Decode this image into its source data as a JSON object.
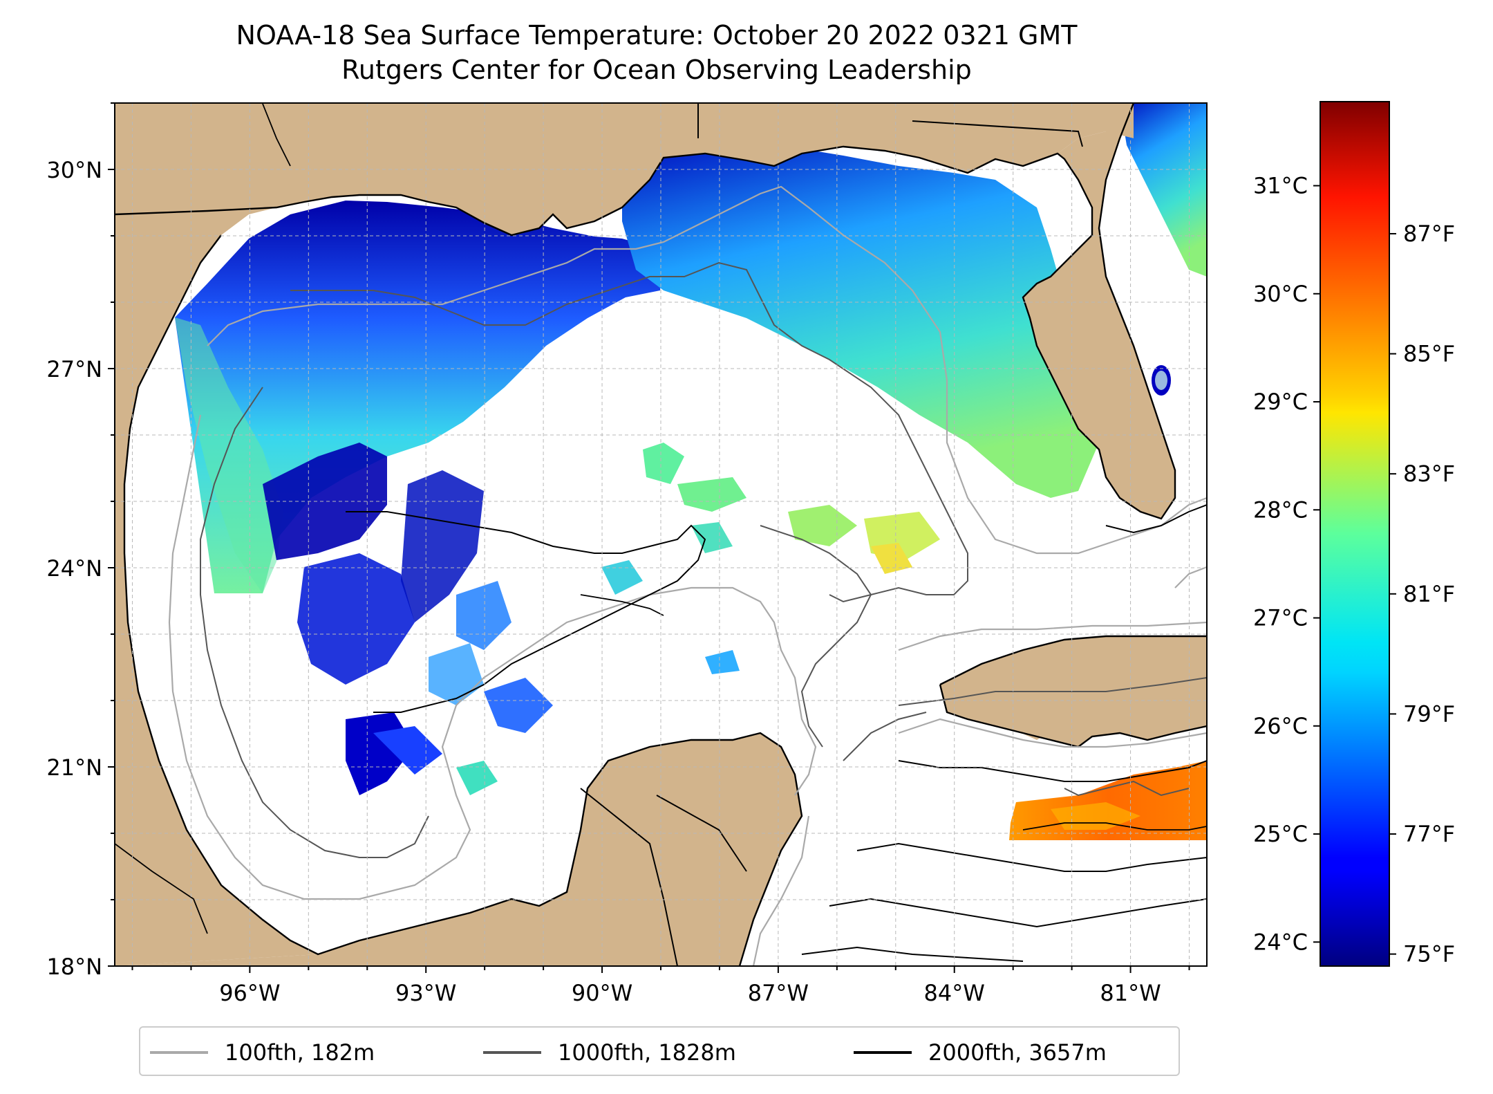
{
  "title": "NOAA-18 Sea Surface Temperature: October 20 2022 0321 GMT",
  "subtitle": "Rutgers Center for Ocean Observing Leadership",
  "map": {
    "lon_range": [
      -98.3,
      -79.7
    ],
    "lat_range": [
      18.0,
      31.0
    ],
    "lat_ticks": [
      {
        "value": 30,
        "label": "30°N"
      },
      {
        "value": 27,
        "label": "27°N"
      },
      {
        "value": 24,
        "label": "24°N"
      },
      {
        "value": 21,
        "label": "21°N"
      },
      {
        "value": 18,
        "label": "18°N"
      }
    ],
    "lon_ticks": [
      {
        "value": -96,
        "label": "96°W"
      },
      {
        "value": -93,
        "label": "93°W"
      },
      {
        "value": -90,
        "label": "90°W"
      },
      {
        "value": -87,
        "label": "87°W"
      },
      {
        "value": -84,
        "label": "84°W"
      },
      {
        "value": -81,
        "label": "81°W"
      }
    ],
    "land_color": "#d2b48c",
    "gridlines": true
  },
  "colorbar": {
    "celsius_ticks": [
      "31°C",
      "30°C",
      "29°C",
      "28°C",
      "27°C",
      "26°C",
      "25°C",
      "24°C"
    ],
    "fahrenheit_ticks": [
      "87°F",
      "85°F",
      "83°F",
      "81°F",
      "79°F",
      "77°F",
      "75°F"
    ],
    "colormap": "jet"
  },
  "legend": {
    "placement": "bottom",
    "items": [
      {
        "label": "100fth, 182m",
        "color": "#a9a9a9"
      },
      {
        "label": "1000fth, 1828m",
        "color": "#555555"
      },
      {
        "label": "2000fth, 3657m",
        "color": "#000000"
      }
    ]
  }
}
